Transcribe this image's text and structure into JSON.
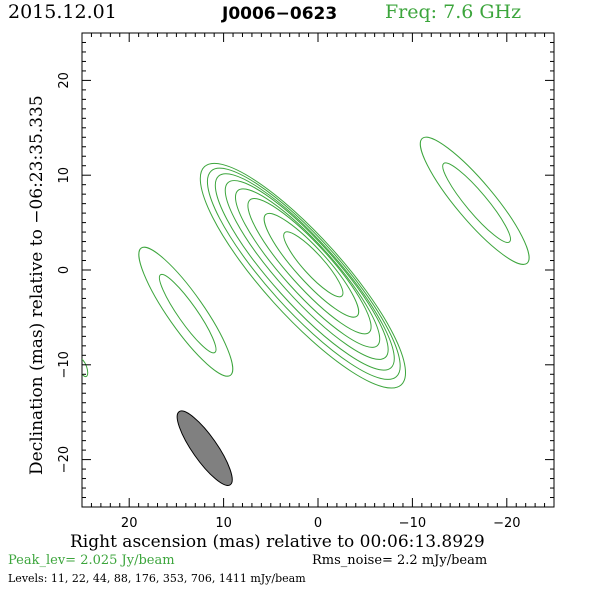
{
  "header": {
    "date": "2015.12.01",
    "source": "J0006−0623",
    "freq": "Freq: 7.6 GHz"
  },
  "footer": {
    "peak": "Peak_lev=  2.025 Jy/beam",
    "rms": "Rms_noise=   2.2 mJy/beam",
    "levels": "Levels:  11,  22,  44,  88, 176, 353, 706, 1411 mJy/beam"
  },
  "colors": {
    "contour": "#3ca53c",
    "beam_fill": "#808080",
    "axis": "#000000"
  },
  "chart_data": {
    "type": "contour",
    "title": "",
    "xlabel": "Right ascension (mas) relative to 00:06:13.8929",
    "ylabel": "Declination (mas) relative to −06:23:35.335",
    "xlim": [
      25,
      -25
    ],
    "ylim": [
      -25,
      25
    ],
    "x_ticks": [
      20,
      10,
      0,
      -10,
      -20
    ],
    "y_ticks": [
      20,
      10,
      0,
      -10,
      -20
    ],
    "x_tick_labels": [
      "20",
      "10",
      "0",
      "−10",
      "−20"
    ],
    "y_tick_labels": [
      "20",
      "10",
      "0",
      "−10",
      "−20"
    ],
    "contour_levels_mJy": [
      11,
      22,
      44,
      88,
      176,
      353,
      706,
      1411
    ],
    "components": [
      {
        "name": "core",
        "center": [
          0.5,
          0.5
        ],
        "contours": [
          {
            "half_major": 15.5,
            "half_minor": 4.2,
            "pa": 42,
            "center": [
              1.6,
              -0.6
            ]
          },
          {
            "half_major": 14.6,
            "half_minor": 3.8,
            "pa": 42,
            "center": [
              1.5,
              -0.4
            ]
          },
          {
            "half_major": 13.6,
            "half_minor": 3.4,
            "pa": 42,
            "center": [
              1.4,
              -0.2
            ]
          },
          {
            "half_major": 12.4,
            "half_minor": 3.0,
            "pa": 42,
            "center": [
              1.2,
              0.0
            ]
          },
          {
            "half_major": 11.0,
            "half_minor": 2.6,
            "pa": 42,
            "center": [
              1.1,
              0.2
            ]
          },
          {
            "half_major": 9.4,
            "half_minor": 2.2,
            "pa": 42,
            "center": [
              0.9,
              0.4
            ]
          },
          {
            "half_major": 7.2,
            "half_minor": 1.7,
            "pa": 42,
            "center": [
              0.7,
              0.5
            ]
          },
          {
            "half_major": 4.5,
            "half_minor": 1.1,
            "pa": 42,
            "center": [
              0.5,
              0.6
            ]
          }
        ]
      },
      {
        "name": "left-feature",
        "contours": [
          {
            "half_major": 8.2,
            "half_minor": 1.9,
            "pa": 35,
            "center": [
              14.0,
              -4.4
            ]
          },
          {
            "half_major": 5.0,
            "half_minor": 1.0,
            "pa": 35,
            "center": [
              13.8,
              -4.6
            ]
          }
        ]
      },
      {
        "name": "right-feature",
        "contours": [
          {
            "half_major": 8.6,
            "half_minor": 2.0,
            "pa": 40,
            "center": [
              -16.6,
              7.3
            ]
          },
          {
            "half_major": 5.4,
            "half_minor": 1.1,
            "pa": 40,
            "center": [
              -16.8,
              7.1
            ]
          }
        ]
      },
      {
        "name": "edge-fragment",
        "contours": [
          {
            "half_major": 1.0,
            "half_minor": 0.4,
            "pa": 20,
            "center": [
              24.9,
              -10.3
            ]
          }
        ]
      }
    ],
    "beam": {
      "center": [
        12.0,
        -18.8
      ],
      "half_major": 4.7,
      "half_minor": 1.3,
      "pa": 35
    }
  }
}
